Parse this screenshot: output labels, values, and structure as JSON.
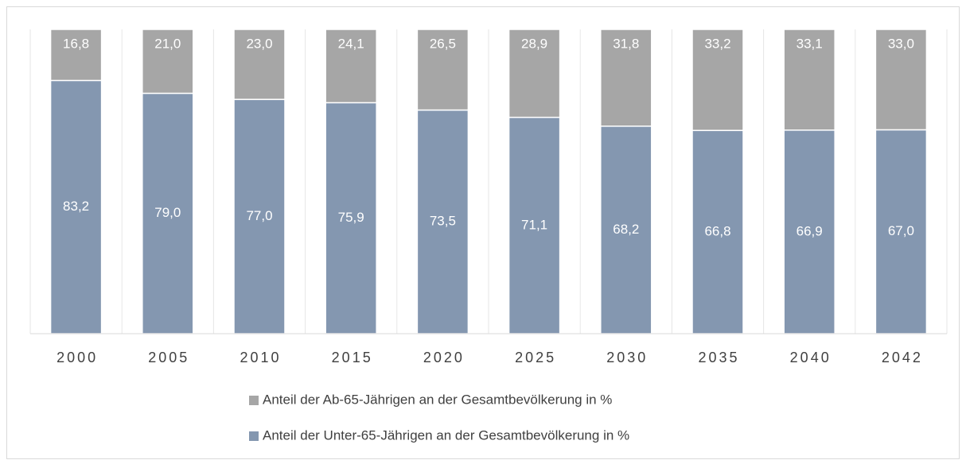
{
  "chart_data": {
    "type": "bar",
    "stacked": true,
    "categories": [
      "2000",
      "2005",
      "2010",
      "2015",
      "2020",
      "2025",
      "2030",
      "2035",
      "2040",
      "2042"
    ],
    "series": [
      {
        "name": "Anteil der Unter-65-Jährigen an der Gesamtbevölkerung in %",
        "color": "#8497b0",
        "values": [
          83.2,
          79.0,
          77.0,
          75.9,
          73.5,
          71.1,
          68.2,
          66.8,
          66.9,
          67.0
        ],
        "value_labels": [
          "83,2",
          "79,0",
          "77,0",
          "75,9",
          "73,5",
          "71,1",
          "68,2",
          "66,8",
          "66,9",
          "67,0"
        ]
      },
      {
        "name": "Anteil der Ab-65-Jährigen an der Gesamtbevölkerung in %",
        "color": "#a6a6a6",
        "values": [
          16.8,
          21.0,
          23.0,
          24.1,
          26.5,
          28.9,
          31.8,
          33.2,
          33.1,
          33.0
        ],
        "value_labels": [
          "16,8",
          "21,0",
          "23,0",
          "24,1",
          "26,5",
          "28,9",
          "31,8",
          "33,2",
          "33,1",
          "33,0"
        ]
      }
    ],
    "ylim": [
      0,
      100
    ]
  }
}
